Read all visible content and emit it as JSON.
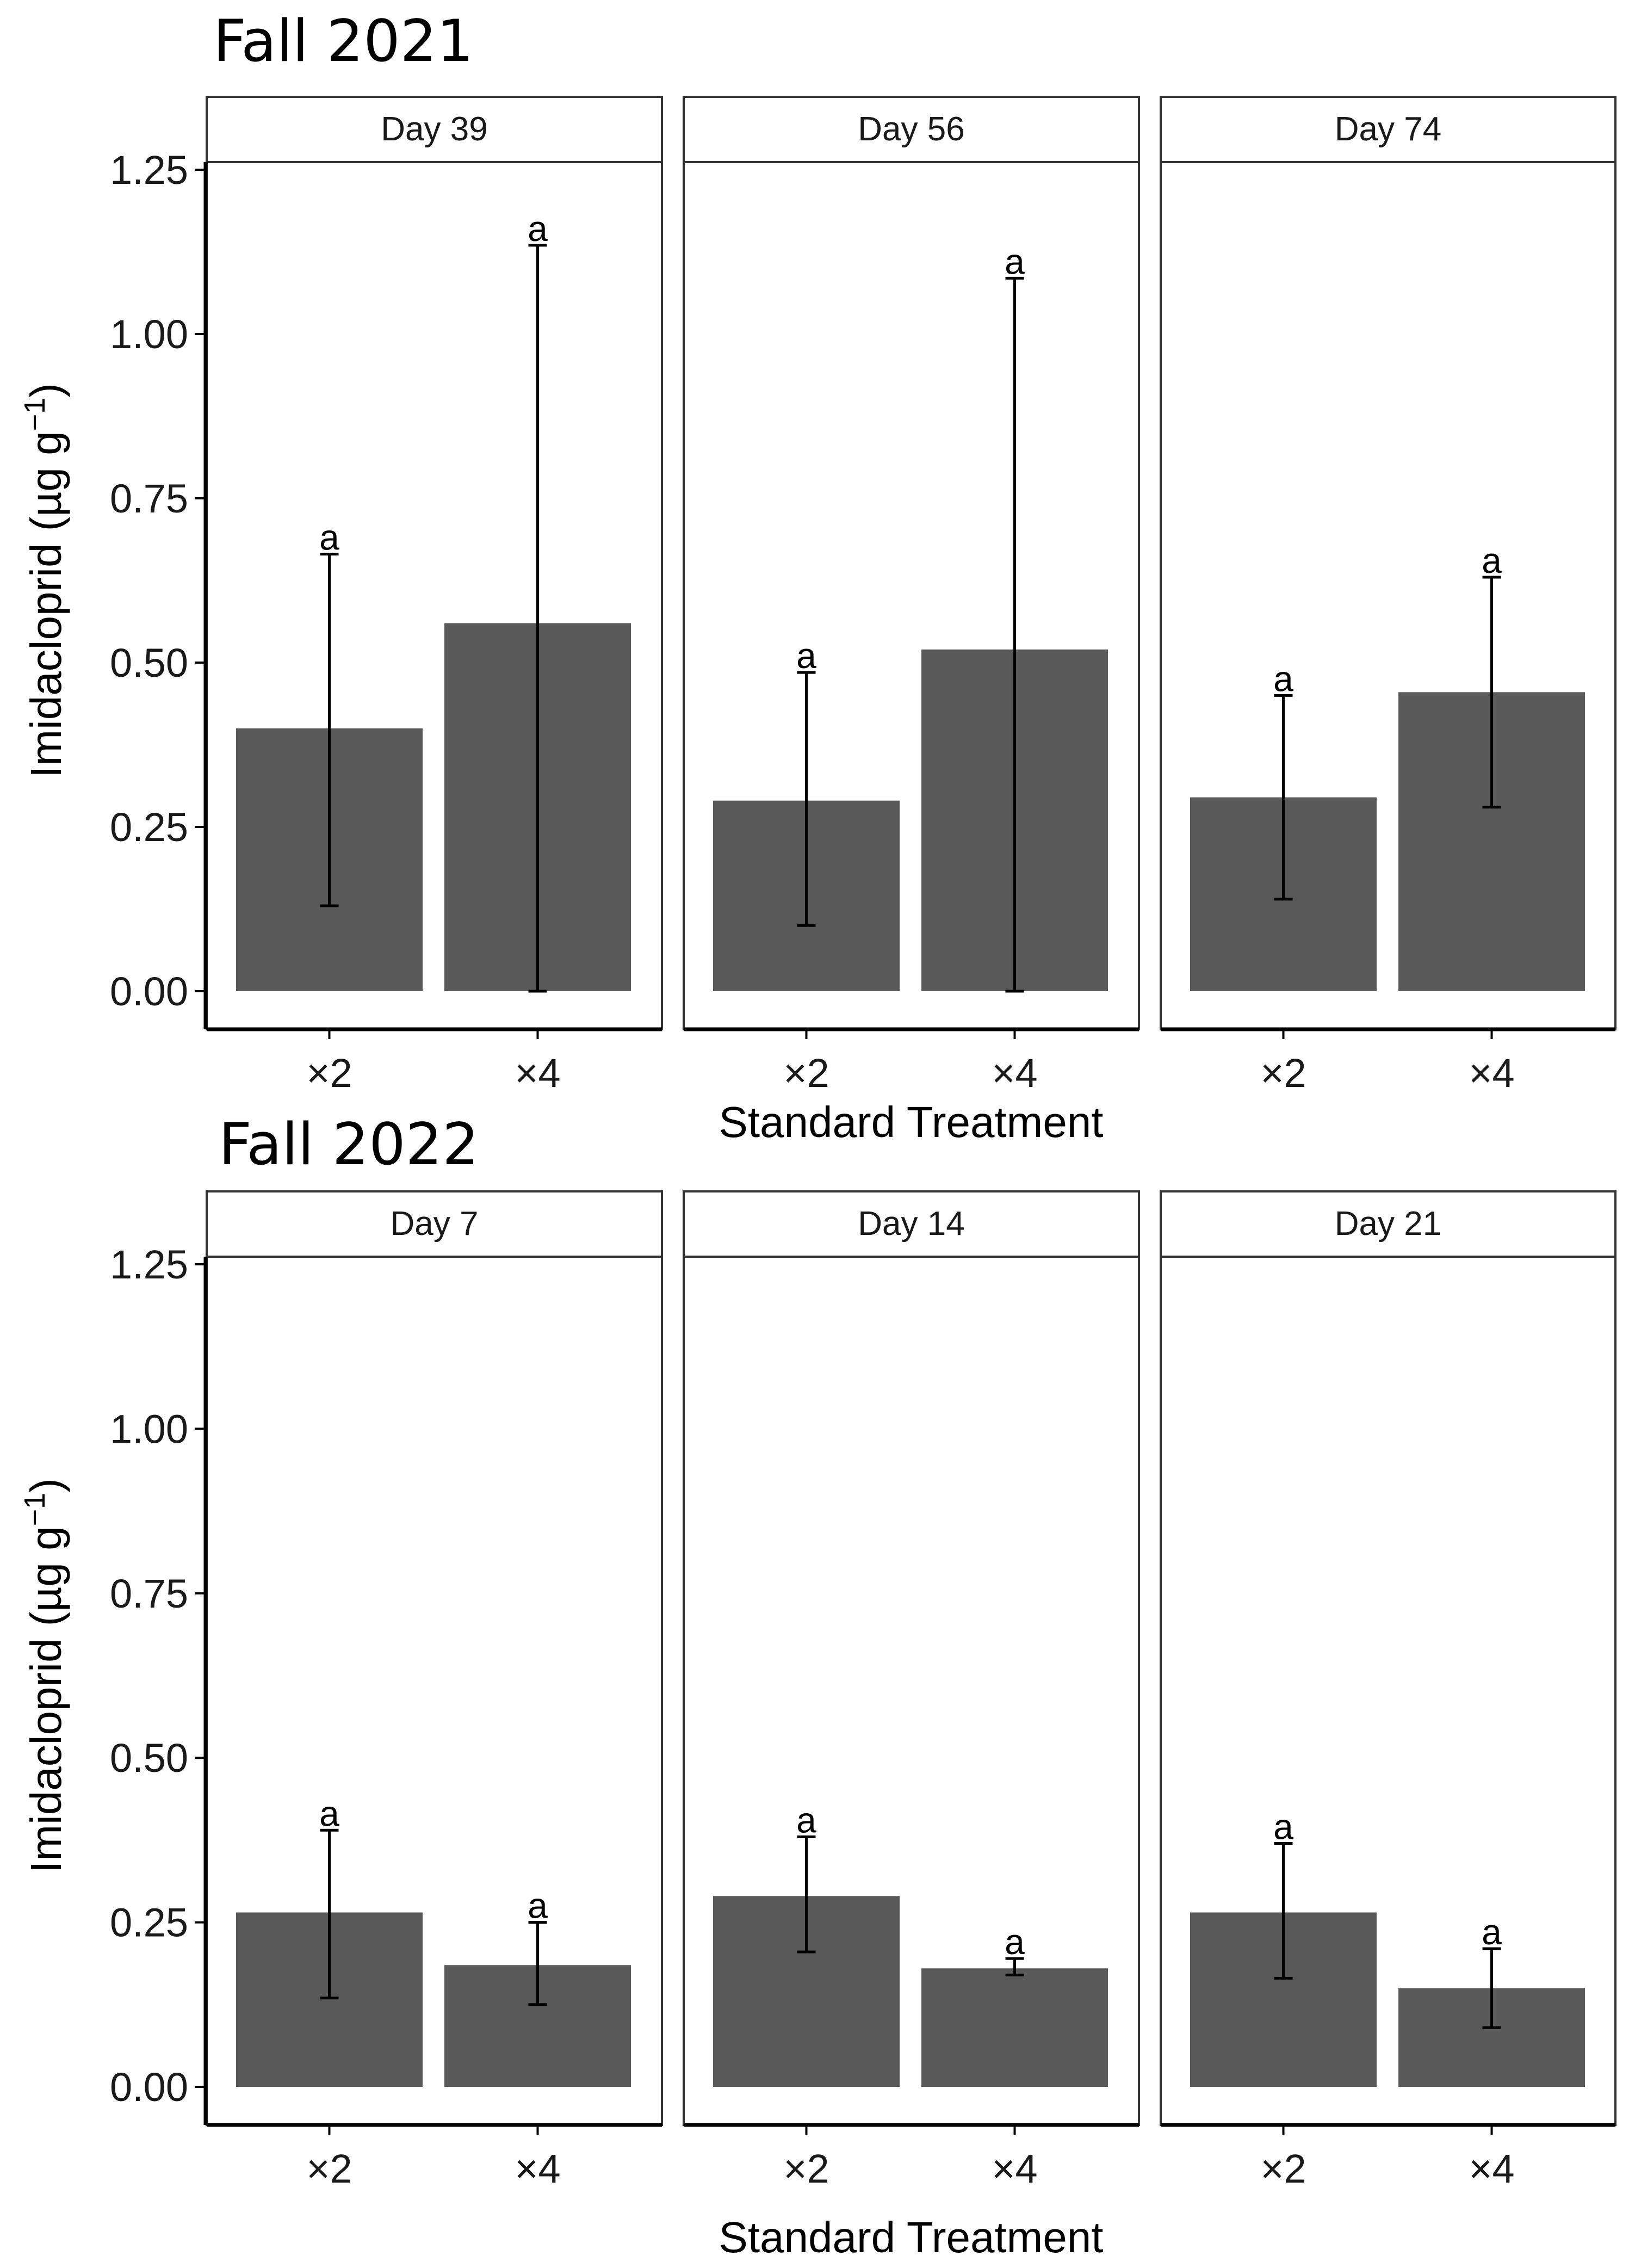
{
  "chart_data": [
    {
      "type": "bar",
      "title": "Fall 2021",
      "xlabel": "Standard Treatment",
      "ylabel": "Imidacloprid (µg g⁻¹)",
      "ylabel_main": "Imidacloprid (",
      "ylabel_unit": "µg g",
      "ylabel_exp": "−1",
      "ylabel_close": ")",
      "ylim": [
        0,
        1.25
      ],
      "yticks": [
        "0.00",
        "0.25",
        "0.50",
        "0.75",
        "1.00",
        "1.25"
      ],
      "grid": false,
      "categories": [
        "×2",
        "×4"
      ],
      "panels": [
        {
          "label": "Day 39",
          "values": [
            0.4,
            0.56
          ],
          "err_low": [
            0.13,
            0.0
          ],
          "err_high": [
            0.665,
            1.135
          ],
          "letters": [
            "a",
            "a"
          ]
        },
        {
          "label": "Day 56",
          "values": [
            0.29,
            0.52
          ],
          "err_low": [
            0.1,
            0.0
          ],
          "err_high": [
            0.485,
            1.085
          ],
          "letters": [
            "a",
            "a"
          ]
        },
        {
          "label": "Day 74",
          "values": [
            0.295,
            0.455
          ],
          "err_low": [
            0.14,
            0.28
          ],
          "err_high": [
            0.45,
            0.63
          ],
          "letters": [
            "a",
            "a"
          ]
        }
      ]
    },
    {
      "type": "bar",
      "title": "Fall 2022",
      "xlabel": "Standard Treatment",
      "ylabel": "Imidacloprid (µg g⁻¹)",
      "ylabel_main": "Imidacloprid (",
      "ylabel_unit": "µg g",
      "ylabel_exp": "−1",
      "ylabel_close": ")",
      "ylim": [
        0,
        1.25
      ],
      "yticks": [
        "0.00",
        "0.25",
        "0.50",
        "0.75",
        "1.00",
        "1.25"
      ],
      "grid": false,
      "categories": [
        "×2",
        "×4"
      ],
      "panels": [
        {
          "label": "Day 7",
          "values": [
            0.265,
            0.185
          ],
          "err_low": [
            0.135,
            0.125
          ],
          "err_high": [
            0.39,
            0.25
          ],
          "letters": [
            "a",
            "a"
          ]
        },
        {
          "label": "Day 14",
          "values": [
            0.29,
            0.18
          ],
          "err_low": [
            0.205,
            0.17
          ],
          "err_high": [
            0.38,
            0.195
          ],
          "letters": [
            "a",
            "a"
          ]
        },
        {
          "label": "Day 21",
          "values": [
            0.265,
            0.15
          ],
          "err_low": [
            0.165,
            0.09
          ],
          "err_high": [
            0.37,
            0.21
          ],
          "letters": [
            "a",
            "a"
          ]
        }
      ]
    }
  ],
  "colors": {
    "bar": "#595959",
    "errorbar": "#000000",
    "panel_border": "#333333",
    "axis": "#000000",
    "text": "#1a1a1a"
  }
}
